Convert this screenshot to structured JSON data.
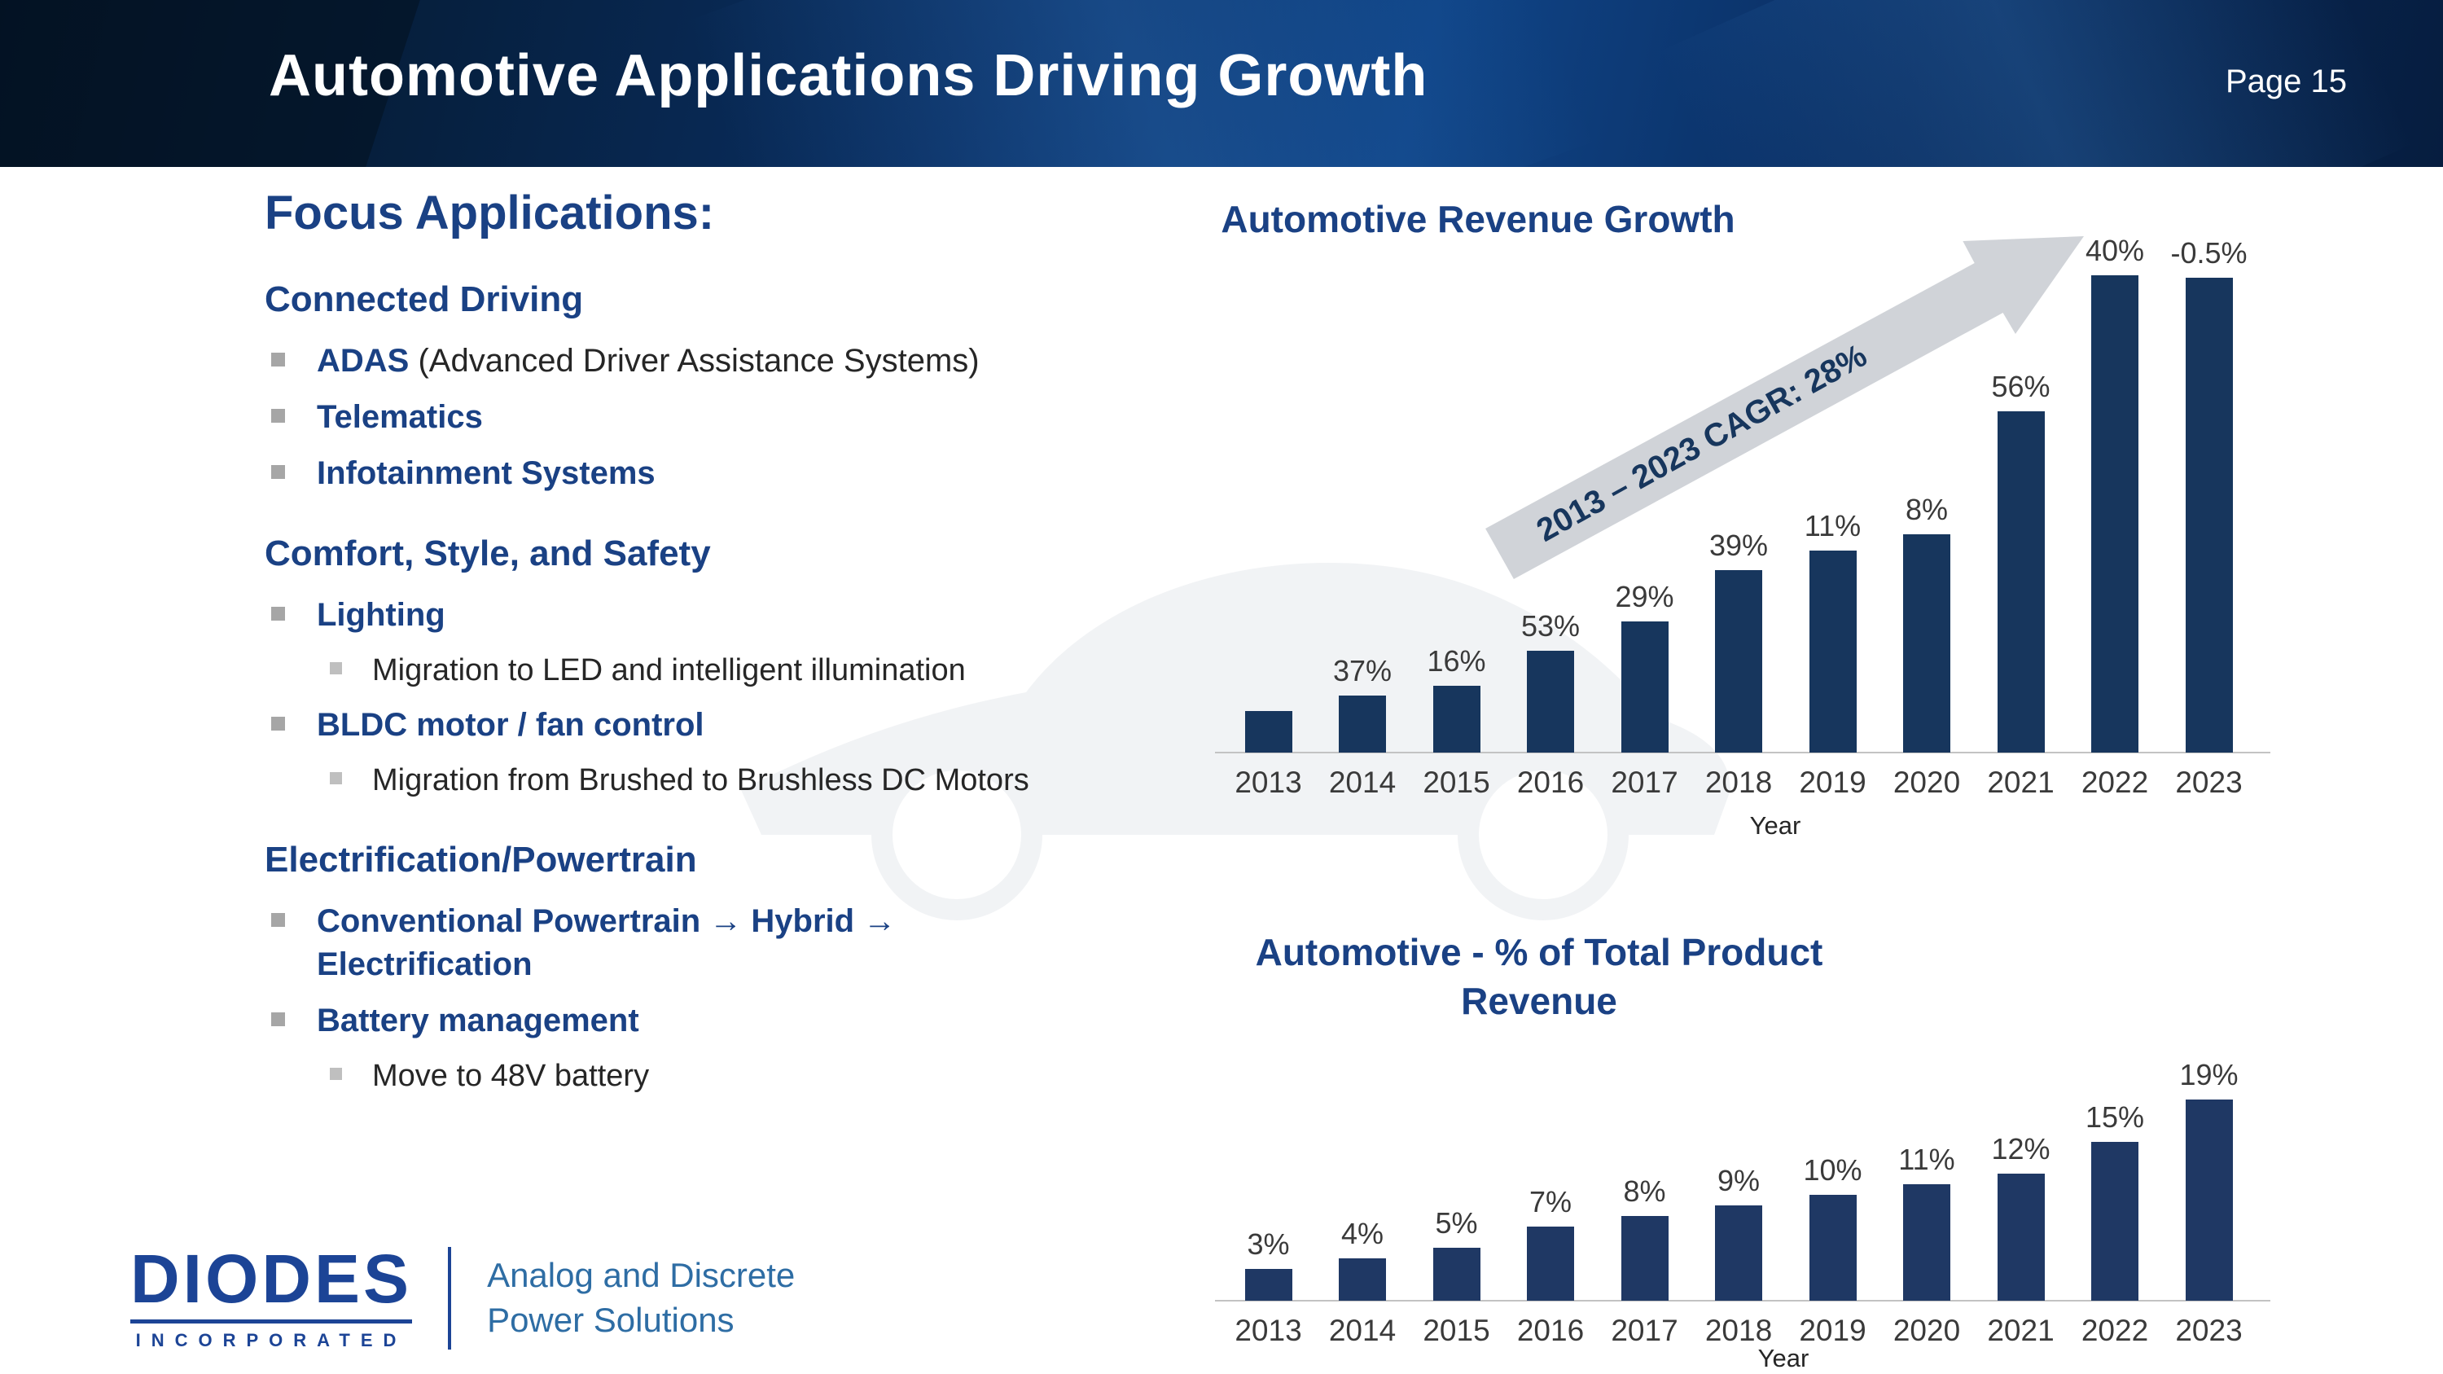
{
  "header": {
    "title": "Automotive Applications Driving Growth",
    "page_label": "Page 15"
  },
  "focus": {
    "heading": "Focus Applications:",
    "sections": [
      {
        "title": "Connected Driving",
        "items": [
          {
            "level": 1,
            "bold": "ADAS",
            "rest": " (Advanced Driver Assistance Systems)"
          },
          {
            "level": 1,
            "bold": "Telematics",
            "rest": ""
          },
          {
            "level": 1,
            "bold": "Infotainment Systems",
            "rest": ""
          }
        ]
      },
      {
        "title": "Comfort, Style, and Safety",
        "items": [
          {
            "level": 1,
            "bold": "Lighting",
            "rest": ""
          },
          {
            "level": 2,
            "bold": "",
            "rest": "Migration to LED and intelligent illumination"
          },
          {
            "level": 1,
            "bold": "BLDC motor / fan control",
            "rest": ""
          },
          {
            "level": 2,
            "bold": "",
            "rest": "Migration from Brushed to Brushless DC Motors"
          }
        ]
      },
      {
        "title": "Electrification/Powertrain",
        "items": [
          {
            "level": 1,
            "bold": "Conventional Powertrain → Hybrid → Electrification",
            "rest": ""
          },
          {
            "level": 1,
            "bold": "Battery management",
            "rest": ""
          },
          {
            "level": 2,
            "bold": "",
            "rest": "Move to 48V battery"
          }
        ]
      }
    ]
  },
  "logo": {
    "brand": "DIODES",
    "sub": "INCORPORATED",
    "tagline": "Analog and Discrete\nPower Solutions"
  },
  "chart_data": [
    {
      "type": "bar",
      "title": "Automotive Revenue Growth",
      "xlabel": "Year",
      "categories": [
        "2013",
        "2014",
        "2015",
        "2016",
        "2017",
        "2018",
        "2019",
        "2020",
        "2021",
        "2022",
        "2023"
      ],
      "bar_value_labels": [
        "",
        "37%",
        "16%",
        "53%",
        "29%",
        "39%",
        "11%",
        "8%",
        "56%",
        "40%",
        "-0.5%"
      ],
      "yoy_growth_pct": [
        null,
        37,
        16,
        53,
        29,
        39,
        11,
        8,
        56,
        40,
        -0.5
      ],
      "relative_revenue_index": [
        1.0,
        1.37,
        1.59,
        2.43,
        3.14,
        4.36,
        4.84,
        5.23,
        8.16,
        11.42,
        11.37
      ],
      "annotation": "2013 – 2023 CAGR: 28%",
      "bar_color": "#17365d",
      "legend": "none",
      "grid": "off"
    },
    {
      "type": "bar",
      "title": "Automotive - % of Total Product Revenue",
      "title_lines": [
        "Automotive - % of Total Product",
        "Revenue"
      ],
      "xlabel": "Year",
      "categories": [
        "2013",
        "2014",
        "2015",
        "2016",
        "2017",
        "2018",
        "2019",
        "2020",
        "2021",
        "2022",
        "2023"
      ],
      "values": [
        3,
        4,
        5,
        7,
        8,
        9,
        10,
        11,
        12,
        15,
        19
      ],
      "bar_value_labels": [
        "3%",
        "4%",
        "5%",
        "7%",
        "8%",
        "9%",
        "10%",
        "11%",
        "12%",
        "15%",
        "19%"
      ],
      "ylim": [
        0,
        20
      ],
      "bar_color": "#1f3864",
      "legend": "none",
      "grid": "off"
    }
  ],
  "colors": {
    "header_bg": "#0a2f63",
    "heading_blue": "#1a4184",
    "body_text": "#262626",
    "bullet_gray": "#a6a6a6",
    "bar_navy": "#17365d",
    "arrow_gray": "#c9cdd3",
    "logo_blue": "#1c4496",
    "tagline_blue": "#2e6da4"
  }
}
